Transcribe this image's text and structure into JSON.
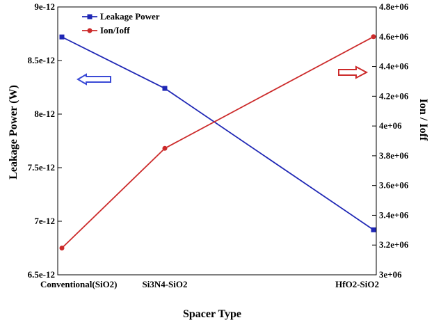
{
  "chart_data": {
    "type": "line",
    "title": "",
    "xlabel": "Spacer Type",
    "ylabel_left": "Leakage Power (W)",
    "ylabel_right": "Ion / Ioff",
    "categories": [
      "Conventional(SiO2)",
      "Si3N4-SiO2",
      "HfO2-SiO2"
    ],
    "series": [
      {
        "name": "Leakage Power",
        "axis": "left",
        "color": "#1f27b5",
        "marker": "square",
        "values": [
          8.72e-12,
          8.24e-12,
          6.92e-12
        ]
      },
      {
        "name": "Ion/Ioff",
        "axis": "right",
        "color": "#cc2a2a",
        "marker": "circle",
        "values": [
          3180000,
          3850000,
          4600000
        ]
      }
    ],
    "left_axis": {
      "ylim": [
        6.5e-12,
        9e-12
      ],
      "ticks": [
        6.5e-12,
        7e-12,
        7.5e-12,
        8e-12,
        8.5e-12,
        9e-12
      ],
      "tick_labels": [
        "6.5e-12",
        "7e-12",
        "7.5e-12",
        "8e-12",
        "8.5e-12",
        "9e-12"
      ]
    },
    "right_axis": {
      "ylim": [
        3000000,
        4800000
      ],
      "ticks": [
        3000000,
        3200000,
        3400000,
        3600000,
        3800000,
        4000000,
        4200000,
        4400000,
        4600000,
        4800000
      ],
      "tick_labels": [
        "3e+06",
        "3.2e+06",
        "3.4e+06",
        "3.6e+06",
        "3.8e+06",
        "4e+06",
        "4.2e+06",
        "4.4e+06",
        "4.6e+06",
        "4.8e+06"
      ]
    },
    "legend_position": "top-left",
    "grid": false,
    "annotations": [
      {
        "type": "arrow",
        "direction": "left",
        "color": "#3a4ad6",
        "meaning": "points to left axis"
      },
      {
        "type": "arrow",
        "direction": "right",
        "color": "#cc2a2a",
        "meaning": "points to right axis"
      }
    ]
  }
}
